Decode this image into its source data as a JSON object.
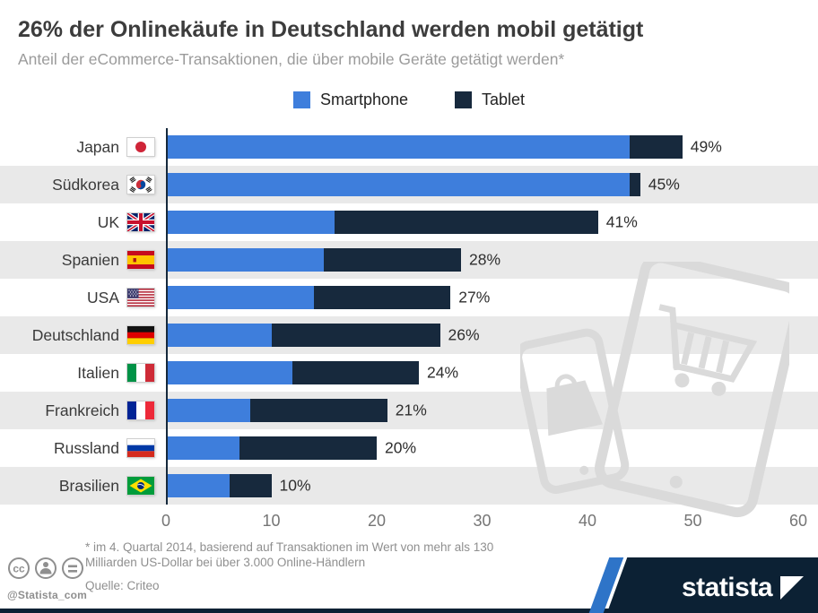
{
  "chart_data": {
    "type": "bar",
    "orientation": "horizontal",
    "stacked": true,
    "title": "26% der Onlinekäufe in Deutschland werden mobil getätigt",
    "subtitle": "Anteil der eCommerce-Transaktionen, die über mobile Geräte getätigt werden*",
    "categories": [
      "Japan",
      "Südkorea",
      "UK",
      "Spanien",
      "USA",
      "Deutschland",
      "Italien",
      "Frankreich",
      "Russland",
      "Brasilien"
    ],
    "country_flags": [
      "japan",
      "south-korea",
      "uk",
      "spain",
      "usa",
      "germany",
      "italy",
      "france",
      "russia",
      "brazil"
    ],
    "series": [
      {
        "name": "Smartphone",
        "color": "#3e7edc",
        "values": [
          44,
          44,
          16,
          15,
          14,
          10,
          12,
          8,
          7,
          6
        ]
      },
      {
        "name": "Tablet",
        "color": "#17293d",
        "values": [
          5,
          1,
          25,
          13,
          13,
          16,
          12,
          13,
          13,
          4
        ]
      }
    ],
    "totals": [
      "49%",
      "45%",
      "41%",
      "28%",
      "27%",
      "26%",
      "24%",
      "21%",
      "20%",
      "10%"
    ],
    "x_ticks": [
      "0",
      "10",
      "20",
      "30",
      "40",
      "50",
      "60"
    ],
    "xlim": [
      0,
      60
    ],
    "legend_position": "top",
    "grid": false,
    "row_stripe_color": "#e9e9e9"
  },
  "footnote": {
    "lines": [
      "* im 4. Quartal 2014, basierend auf Transaktionen im Wert von mehr als 130",
      "Milliarden US-Dollar bei über 3.000 Online-Händlern"
    ],
    "source": "Quelle: Criteo"
  },
  "footer": {
    "handle": "@Statista_com",
    "brand": "statista",
    "brand_navy": "#0c2134",
    "brand_blue": "#2e74c8"
  }
}
